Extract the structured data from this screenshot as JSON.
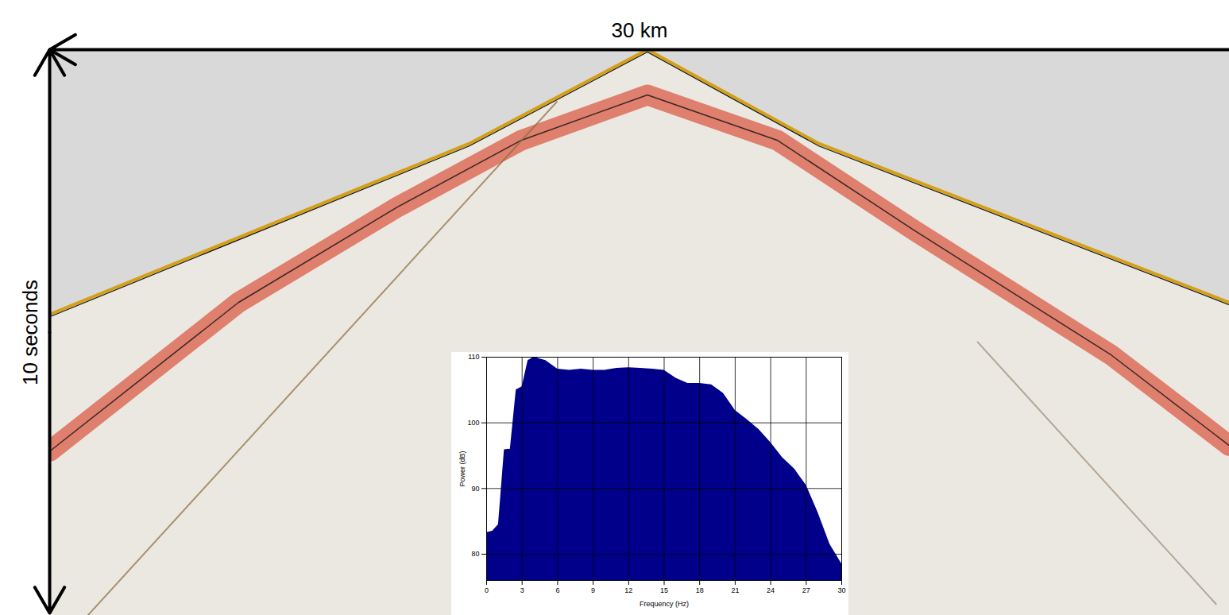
{
  "chart_data": [
    {
      "type": "seismic_gather",
      "xlabel": "30 km",
      "ylabel": "10 seconds",
      "xlim": [
        0,
        30
      ],
      "ylim": [
        0,
        10
      ],
      "tick_labels": false,
      "series": [
        {
          "color": "#d4a017",
          "x": [
            0,
            10.67,
            15.2,
            19.56,
            30
          ],
          "values": [
            4.68,
            1.66,
            0,
            1.66,
            4.47
          ]
        },
        {
          "color": "#d62a10",
          "x": [
            0,
            4.8,
            8.85,
            12,
            15.2,
            18.5,
            22,
            27,
            30
          ],
          "values": [
            7.1,
            4.47,
            2.78,
            1.6,
            0.8,
            1.6,
            3.2,
            5.4,
            7.0
          ]
        },
        {
          "color": "#8a6d3b",
          "x": [
            12.9,
            0.97
          ],
          "values": [
            0.92,
            10
          ]
        },
        {
          "color": "#9a8a70",
          "x": [
            23.6,
            29.66
          ],
          "values": [
            5.17,
            9.8
          ]
        }
      ]
    },
    {
      "type": "area",
      "xlabel": "Frequency (Hz)",
      "ylabel": "Power (dB)",
      "color": "#00008b",
      "x": [
        0,
        0.5,
        1,
        1.5,
        2,
        2.5,
        3,
        3.5,
        4,
        5,
        6,
        7,
        8,
        9,
        10,
        11,
        12,
        13,
        14,
        15,
        16,
        17,
        18,
        19,
        20,
        21,
        22,
        23,
        24,
        25,
        26,
        27,
        28,
        29,
        30
      ],
      "values": [
        83.3,
        83.5,
        84.5,
        95.9,
        96,
        105,
        105.5,
        109.5,
        110,
        109.5,
        108.2,
        108,
        108.2,
        108,
        108,
        108.3,
        108.4,
        108.3,
        108.2,
        108,
        106.8,
        106,
        106,
        105.8,
        104.5,
        101.9,
        100.5,
        99,
        97,
        94.7,
        93,
        90.5,
        86.3,
        81.5,
        78.5
      ],
      "xlim": [
        0,
        30
      ],
      "ylim": [
        76,
        110
      ],
      "xticks": [
        0,
        3,
        6,
        9,
        12,
        15,
        18,
        21,
        24,
        27,
        30
      ],
      "yticks": [
        80,
        90,
        100,
        110
      ],
      "grid": true
    }
  ]
}
